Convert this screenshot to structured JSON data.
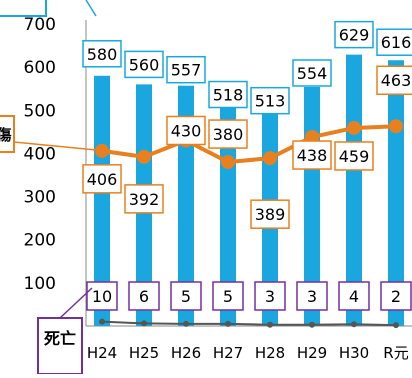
{
  "chart_data": {
    "type": "bar",
    "categories": [
      "H24",
      "H25",
      "H26",
      "H27",
      "H28",
      "H29",
      "H30",
      "R元"
    ],
    "ylim": [
      0,
      700
    ],
    "yticks": [
      0,
      100,
      200,
      300,
      400,
      500,
      600,
      700
    ],
    "grid": false,
    "series": [
      {
        "kind": "bar",
        "values": [
          580,
          560,
          557,
          518,
          513,
          554,
          629,
          616
        ],
        "color": "#1aa7e0",
        "label_color": "#1aa7e0",
        "labels": [
          "580",
          "560",
          "557",
          "518",
          "513",
          "554",
          "629",
          "616"
        ]
      },
      {
        "kind": "line",
        "values": [
          406,
          392,
          430,
          380,
          389,
          438,
          459,
          463
        ],
        "color": "#e8801f",
        "label_color": "#e8801f",
        "labels": [
          "406",
          "392",
          "430",
          "380",
          "389",
          "438",
          "459",
          "463"
        ]
      },
      {
        "name": "死亡",
        "kind": "line",
        "values": [
          10,
          6,
          5,
          5,
          3,
          3,
          4,
          2
        ],
        "color": "#555555",
        "label_color": "#7030a0",
        "labels": [
          "10",
          "6",
          "5",
          "5",
          "3",
          "3",
          "4",
          "2"
        ]
      }
    ],
    "callouts": {
      "line_series_partial": "傷",
      "death_series": "死亡"
    }
  }
}
